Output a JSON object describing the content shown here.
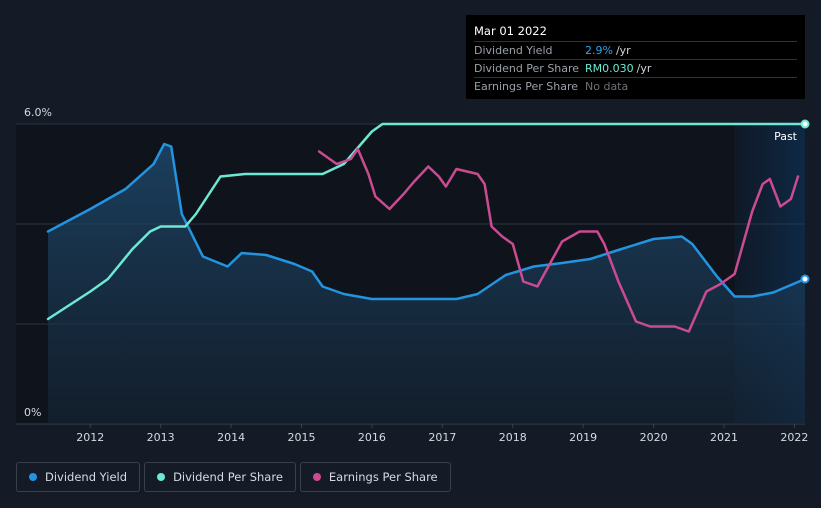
{
  "chart_data": {
    "type": "line",
    "y_axis": {
      "top_label": "6.0%",
      "bottom_label": "0%",
      "ylim": [
        0,
        6
      ]
    },
    "x_ticks": [
      "2012",
      "2013",
      "2014",
      "2015",
      "2016",
      "2017",
      "2018",
      "2019",
      "2020",
      "2021",
      "2022"
    ],
    "xlim": [
      2011.4,
      2022.15
    ],
    "past_label": "Past",
    "past_region_start": 2021.15,
    "series": [
      {
        "name": "Dividend Yield",
        "color": "#2394e0",
        "fill": true,
        "points": [
          [
            2011.4,
            3.85
          ],
          [
            2012.0,
            4.3
          ],
          [
            2012.5,
            4.7
          ],
          [
            2012.9,
            5.2
          ],
          [
            2013.05,
            5.6
          ],
          [
            2013.15,
            5.55
          ],
          [
            2013.3,
            4.2
          ],
          [
            2013.6,
            3.35
          ],
          [
            2013.95,
            3.15
          ],
          [
            2014.15,
            3.42
          ],
          [
            2014.5,
            3.38
          ],
          [
            2014.9,
            3.2
          ],
          [
            2015.15,
            3.05
          ],
          [
            2015.3,
            2.75
          ],
          [
            2015.6,
            2.6
          ],
          [
            2016.0,
            2.5
          ],
          [
            2016.6,
            2.5
          ],
          [
            2017.2,
            2.5
          ],
          [
            2017.5,
            2.6
          ],
          [
            2017.9,
            2.98
          ],
          [
            2018.3,
            3.15
          ],
          [
            2018.7,
            3.22
          ],
          [
            2019.1,
            3.3
          ],
          [
            2019.5,
            3.48
          ],
          [
            2020.0,
            3.7
          ],
          [
            2020.4,
            3.75
          ],
          [
            2020.55,
            3.6
          ],
          [
            2020.9,
            2.95
          ],
          [
            2021.15,
            2.55
          ],
          [
            2021.4,
            2.55
          ],
          [
            2021.7,
            2.63
          ],
          [
            2022.15,
            2.9
          ]
        ]
      },
      {
        "name": "Dividend Per Share",
        "color": "#6ce8d3",
        "fill": false,
        "points": [
          [
            2011.4,
            2.1
          ],
          [
            2012.0,
            2.65
          ],
          [
            2012.25,
            2.9
          ],
          [
            2012.6,
            3.5
          ],
          [
            2012.85,
            3.85
          ],
          [
            2013.0,
            3.95
          ],
          [
            2013.35,
            3.95
          ],
          [
            2013.5,
            4.2
          ],
          [
            2013.85,
            4.95
          ],
          [
            2014.2,
            5.0
          ],
          [
            2015.0,
            5.0
          ],
          [
            2015.3,
            5.0
          ],
          [
            2015.6,
            5.2
          ],
          [
            2016.0,
            5.85
          ],
          [
            2016.15,
            6.0
          ],
          [
            2017.0,
            6.0
          ],
          [
            2018.0,
            6.0
          ],
          [
            2019.0,
            6.0
          ],
          [
            2020.0,
            6.0
          ],
          [
            2021.0,
            6.0
          ],
          [
            2022.15,
            6.0
          ]
        ]
      },
      {
        "name": "Earnings Per Share",
        "color": "#cb4b92",
        "fill": false,
        "points": [
          [
            2015.25,
            5.45
          ],
          [
            2015.5,
            5.2
          ],
          [
            2015.7,
            5.3
          ],
          [
            2015.8,
            5.5
          ],
          [
            2015.95,
            5.0
          ],
          [
            2016.05,
            4.55
          ],
          [
            2016.25,
            4.3
          ],
          [
            2016.45,
            4.6
          ],
          [
            2016.6,
            4.85
          ],
          [
            2016.8,
            5.15
          ],
          [
            2016.95,
            4.95
          ],
          [
            2017.05,
            4.75
          ],
          [
            2017.2,
            5.1
          ],
          [
            2017.5,
            5.0
          ],
          [
            2017.6,
            4.8
          ],
          [
            2017.7,
            3.95
          ],
          [
            2017.85,
            3.75
          ],
          [
            2018.0,
            3.6
          ],
          [
            2018.15,
            2.85
          ],
          [
            2018.35,
            2.75
          ],
          [
            2018.7,
            3.65
          ],
          [
            2018.95,
            3.85
          ],
          [
            2019.2,
            3.85
          ],
          [
            2019.3,
            3.6
          ],
          [
            2019.5,
            2.85
          ],
          [
            2019.75,
            2.05
          ],
          [
            2019.95,
            1.95
          ],
          [
            2020.3,
            1.95
          ],
          [
            2020.5,
            1.85
          ],
          [
            2020.75,
            2.65
          ],
          [
            2020.95,
            2.8
          ],
          [
            2021.15,
            3.0
          ],
          [
            2021.4,
            4.25
          ],
          [
            2021.55,
            4.8
          ],
          [
            2021.65,
            4.9
          ],
          [
            2021.8,
            4.35
          ],
          [
            2021.95,
            4.5
          ],
          [
            2022.05,
            4.95
          ]
        ]
      }
    ]
  },
  "tooltip": {
    "date": "Mar 01 2022",
    "rows": [
      {
        "label": "Dividend Yield",
        "value": "2.9%",
        "unit": "/yr"
      },
      {
        "label": "Dividend Per Share",
        "value": "RM0.030",
        "unit": "/yr"
      },
      {
        "label": "Earnings Per Share",
        "value": "No data",
        "unit": ""
      }
    ]
  },
  "legend": [
    {
      "label": "Dividend Yield",
      "color": "#2394e0"
    },
    {
      "label": "Dividend Per Share",
      "color": "#6ce8d3"
    },
    {
      "label": "Earnings Per Share",
      "color": "#cb4b92"
    }
  ]
}
